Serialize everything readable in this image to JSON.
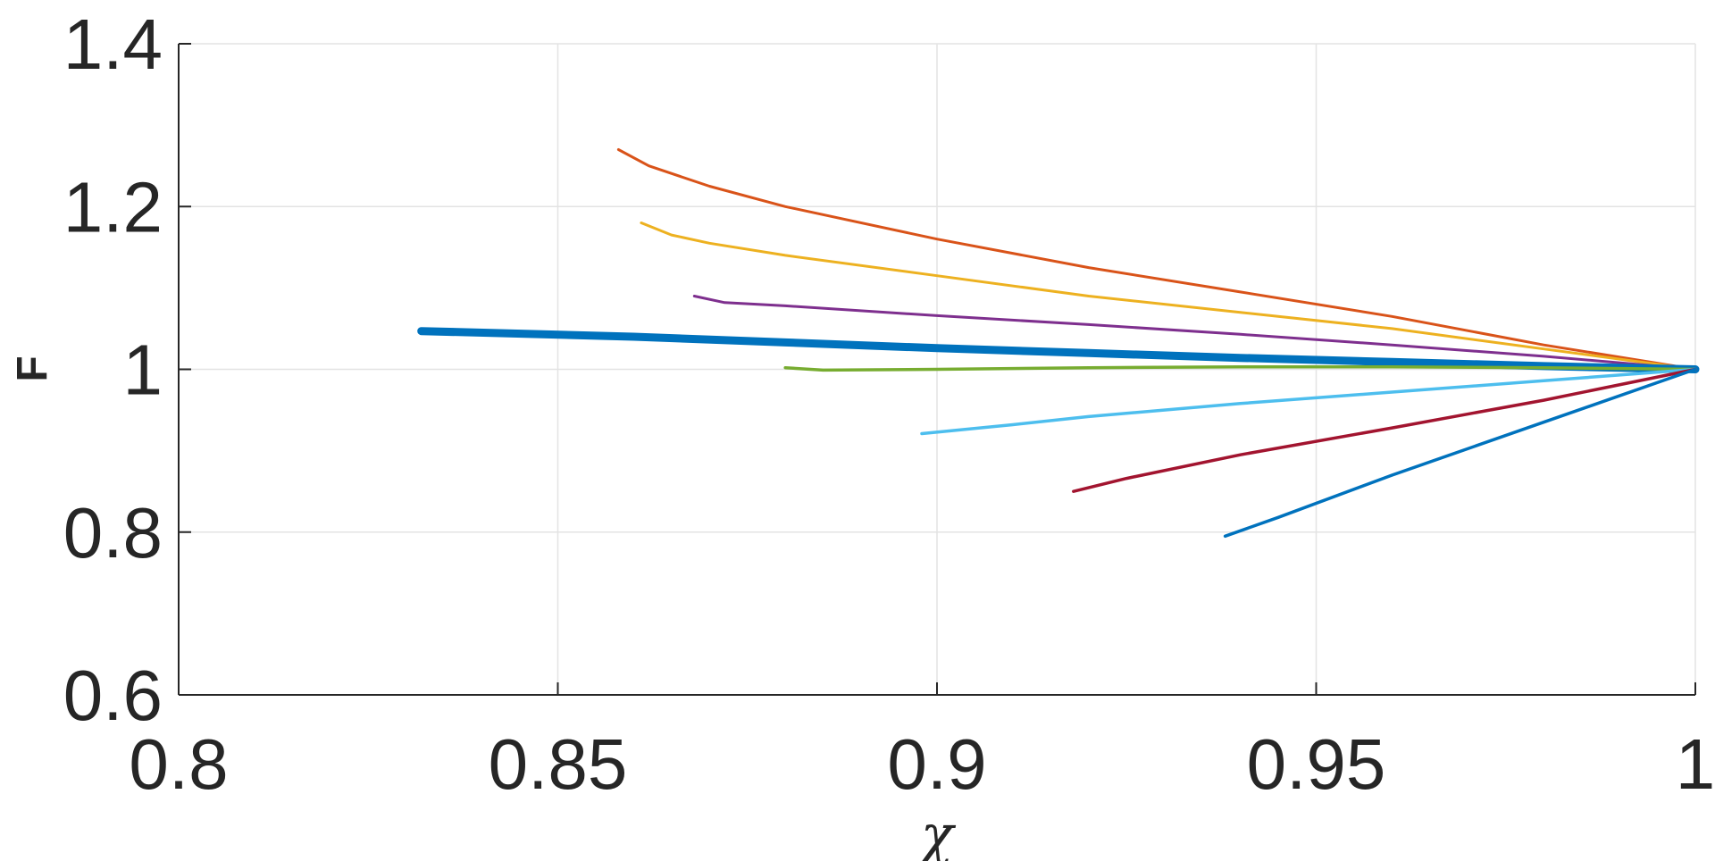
{
  "chart_data": {
    "type": "line",
    "xlabel": "χ",
    "ylabel": "F",
    "xlim": [
      0.8,
      1.0
    ],
    "ylim": [
      0.6,
      1.4
    ],
    "xticks": [
      "0.8",
      "0.85",
      "0.9",
      "0.95",
      "1"
    ],
    "xtick_values": [
      0.8,
      0.85,
      0.9,
      0.95,
      1.0
    ],
    "yticks": [
      "0.6",
      "0.8",
      "1",
      "1.2",
      "1.4"
    ],
    "ytick_values": [
      0.6,
      0.8,
      1.0,
      1.2,
      1.4
    ],
    "grid": true,
    "series": [
      {
        "color": "#D95319",
        "width": 3,
        "x": [
          0.858,
          0.862,
          0.87,
          0.88,
          0.9,
          0.92,
          0.94,
          0.96,
          0.98,
          1.0
        ],
        "y": [
          1.27,
          1.25,
          1.225,
          1.2,
          1.16,
          1.125,
          1.095,
          1.065,
          1.03,
          1.0
        ]
      },
      {
        "color": "#EDB120",
        "width": 3,
        "x": [
          0.861,
          0.865,
          0.87,
          0.88,
          0.9,
          0.92,
          0.94,
          0.96,
          0.98,
          1.0
        ],
        "y": [
          1.18,
          1.165,
          1.155,
          1.14,
          1.115,
          1.09,
          1.07,
          1.05,
          1.025,
          1.0
        ]
      },
      {
        "color": "#7E2F8E",
        "width": 3,
        "x": [
          0.868,
          0.872,
          0.88,
          0.9,
          0.92,
          0.94,
          0.96,
          0.98,
          1.0
        ],
        "y": [
          1.09,
          1.082,
          1.078,
          1.066,
          1.055,
          1.043,
          1.03,
          1.016,
          1.0
        ]
      },
      {
        "color": "#0072BD",
        "width": 9,
        "x": [
          0.832,
          0.86,
          0.88,
          0.9,
          0.92,
          0.94,
          0.96,
          0.98,
          1.0
        ],
        "y": [
          1.047,
          1.04,
          1.033,
          1.026,
          1.02,
          1.014,
          1.009,
          1.004,
          1.0
        ]
      },
      {
        "color": "#77AC30",
        "width": 3.5,
        "x": [
          0.88,
          0.885,
          0.9,
          0.92,
          0.94,
          0.96,
          0.98,
          1.0
        ],
        "y": [
          1.002,
          0.999,
          1.0,
          1.002,
          1.003,
          1.003,
          1.002,
          1.0
        ]
      },
      {
        "color": "#4DBEEE",
        "width": 3.5,
        "x": [
          0.898,
          0.91,
          0.92,
          0.94,
          0.96,
          0.98,
          1.0
        ],
        "y": [
          0.921,
          0.932,
          0.942,
          0.958,
          0.972,
          0.986,
          1.0
        ]
      },
      {
        "color": "#A2142F",
        "width": 3.5,
        "x": [
          0.918,
          0.925,
          0.94,
          0.96,
          0.98,
          1.0
        ],
        "y": [
          0.85,
          0.866,
          0.895,
          0.928,
          0.962,
          1.0
        ]
      },
      {
        "color": "#0072BD",
        "width": 3.5,
        "x": [
          0.938,
          0.945,
          0.96,
          0.98,
          1.0
        ],
        "y": [
          0.795,
          0.818,
          0.87,
          0.935,
          1.0
        ]
      }
    ]
  }
}
